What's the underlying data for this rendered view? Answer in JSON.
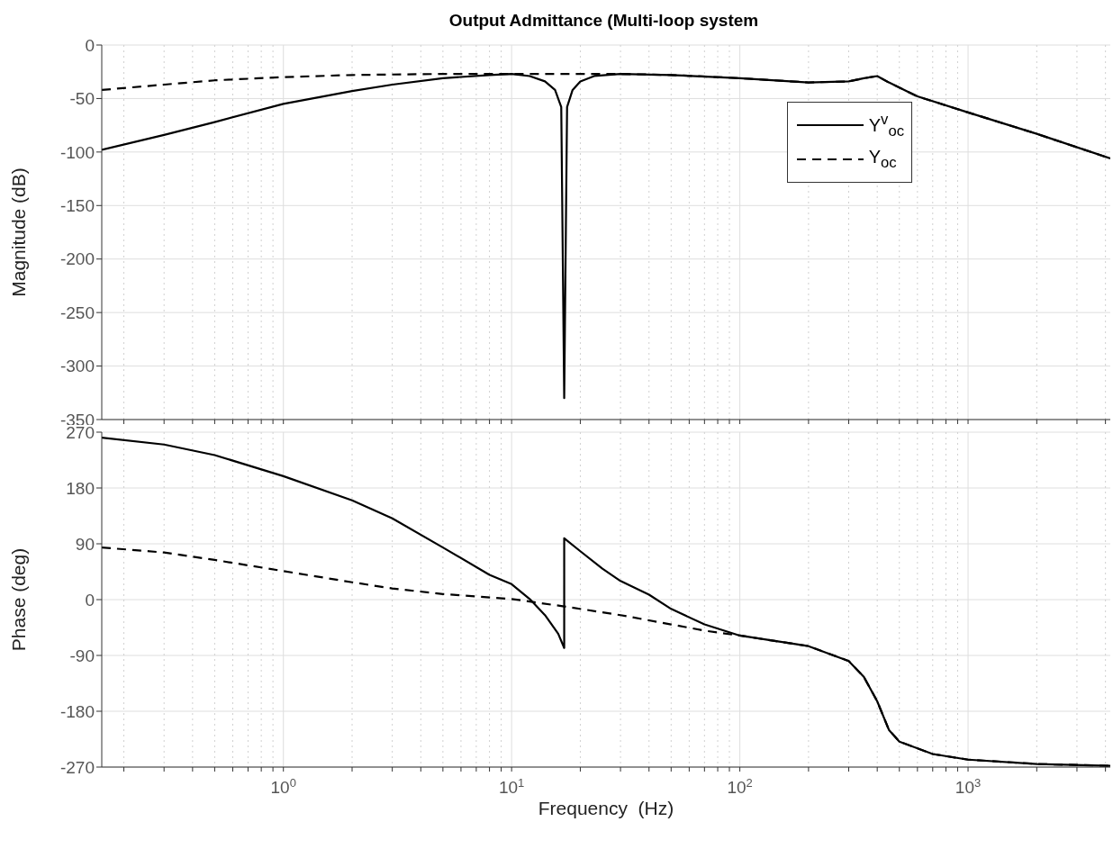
{
  "chart_data": [
    {
      "type": "line",
      "title": "Output Admittance (Multi-loop system",
      "ylabel": "Magnitude (dB)",
      "log": "x",
      "grid": true,
      "legend": "top right",
      "tick_labels": "y",
      "xlim": [
        0.16,
        4200
      ],
      "xticks": [
        {
          "value": 0.2,
          "label": null
        },
        {
          "value": 0.3,
          "label": null
        },
        {
          "value": 0.4,
          "label": null
        },
        {
          "value": 0.5,
          "label": null
        },
        {
          "value": 0.6,
          "label": null
        },
        {
          "value": 0.7,
          "label": null
        },
        {
          "value": 0.8,
          "label": null
        },
        {
          "value": 0.9,
          "label": null
        },
        {
          "value": 1,
          "label": null
        },
        {
          "value": 2,
          "label": null
        },
        {
          "value": 3,
          "label": null
        },
        {
          "value": 4,
          "label": null
        },
        {
          "value": 5,
          "label": null
        },
        {
          "value": 6,
          "label": null
        },
        {
          "value": 7,
          "label": null
        },
        {
          "value": 8,
          "label": null
        },
        {
          "value": 9,
          "label": null
        },
        {
          "value": 10,
          "label": null
        },
        {
          "value": 20,
          "label": null
        },
        {
          "value": 30,
          "label": null
        },
        {
          "value": 40,
          "label": null
        },
        {
          "value": 50,
          "label": null
        },
        {
          "value": 60,
          "label": null
        },
        {
          "value": 70,
          "label": null
        },
        {
          "value": 80,
          "label": null
        },
        {
          "value": 90,
          "label": null
        },
        {
          "value": 100,
          "label": null
        },
        {
          "value": 200,
          "label": null
        },
        {
          "value": 300,
          "label": null
        },
        {
          "value": 400,
          "label": null
        },
        {
          "value": 500,
          "label": null
        },
        {
          "value": 600,
          "label": null
        },
        {
          "value": 700,
          "label": null
        },
        {
          "value": 800,
          "label": null
        },
        {
          "value": 900,
          "label": null
        },
        {
          "value": 1000,
          "label": null
        },
        {
          "value": 2000,
          "label": null
        },
        {
          "value": 3000,
          "label": null
        },
        {
          "value": 4000,
          "label": null
        }
      ],
      "ylim": [
        -350,
        0
      ],
      "yticks": [
        0,
        -50,
        -100,
        -150,
        -200,
        -250,
        -300,
        -350
      ],
      "series": [
        {
          "name": "Y$^{v}$$_{oc}$",
          "color": "#000000",
          "line_style": "solid",
          "x": [
            0.16,
            0.3,
            0.5,
            1,
            2,
            3,
            5,
            8,
            10,
            12,
            14,
            15.5,
            16.5,
            17,
            17.5,
            18.5,
            20,
            23,
            30,
            50,
            100,
            200,
            300,
            350,
            400,
            450,
            600,
            1000,
            2000,
            4200
          ],
          "values": [
            -98,
            -84,
            -72,
            -55,
            -43,
            -37,
            -31,
            -28,
            -27,
            -29,
            -34,
            -42,
            -58,
            -330,
            -58,
            -42,
            -34,
            -29,
            -27,
            -28,
            -31,
            -35,
            -34,
            -31,
            -29,
            -35,
            -48,
            -63,
            -83,
            -106
          ]
        },
        {
          "name": "Y$_{oc}$",
          "color": "#000000",
          "line_style": "dashed",
          "x": [
            0.16,
            0.3,
            0.5,
            1,
            2,
            5,
            10,
            20,
            30,
            50,
            100,
            200,
            300,
            350,
            400,
            450,
            600,
            1000,
            2000,
            4200
          ],
          "values": [
            -42,
            -37,
            -33,
            -30,
            -28,
            -27,
            -27,
            -27,
            -27,
            -28,
            -31,
            -35,
            -34,
            -31,
            -29,
            -35,
            -48,
            -63,
            -83,
            -106
          ]
        }
      ]
    },
    {
      "type": "line",
      "xlabel": "Frequency  (Hz)",
      "ylabel": "Phase (deg)",
      "log": "x",
      "grid": true,
      "xlim": [
        0.16,
        4200
      ],
      "xticks": [
        {
          "value": 0.2,
          "label": null
        },
        {
          "value": 0.3,
          "label": null
        },
        {
          "value": 0.4,
          "label": null
        },
        {
          "value": 0.5,
          "label": null
        },
        {
          "value": 0.6,
          "label": null
        },
        {
          "value": 0.7,
          "label": null
        },
        {
          "value": 0.8,
          "label": null
        },
        {
          "value": 0.9,
          "label": null
        },
        {
          "value": 1,
          "label": "10$^{0}$"
        },
        {
          "value": 2,
          "label": null
        },
        {
          "value": 3,
          "label": null
        },
        {
          "value": 4,
          "label": null
        },
        {
          "value": 5,
          "label": null
        },
        {
          "value": 6,
          "label": null
        },
        {
          "value": 7,
          "label": null
        },
        {
          "value": 8,
          "label": null
        },
        {
          "value": 9,
          "label": null
        },
        {
          "value": 10,
          "label": "10$^{1}$"
        },
        {
          "value": 20,
          "label": null
        },
        {
          "value": 30,
          "label": null
        },
        {
          "value": 40,
          "label": null
        },
        {
          "value": 50,
          "label": null
        },
        {
          "value": 60,
          "label": null
        },
        {
          "value": 70,
          "label": null
        },
        {
          "value": 80,
          "label": null
        },
        {
          "value": 90,
          "label": null
        },
        {
          "value": 100,
          "label": "10$^{2}$"
        },
        {
          "value": 200,
          "label": null
        },
        {
          "value": 300,
          "label": null
        },
        {
          "value": 400,
          "label": null
        },
        {
          "value": 500,
          "label": null
        },
        {
          "value": 600,
          "label": null
        },
        {
          "value": 700,
          "label": null
        },
        {
          "value": 800,
          "label": null
        },
        {
          "value": 900,
          "label": null
        },
        {
          "value": 1000,
          "label": "10$^{3}$"
        },
        {
          "value": 2000,
          "label": null
        },
        {
          "value": 3000,
          "label": null
        },
        {
          "value": 4000,
          "label": null
        }
      ],
      "ylim": [
        -270,
        270
      ],
      "yticks": [
        270,
        180,
        90,
        0,
        -90,
        -180,
        -270
      ],
      "series": [
        {
          "color": "#000000",
          "line_style": "solid",
          "x": [
            0.16,
            0.3,
            0.5,
            1,
            2,
            3,
            5,
            8,
            10,
            12,
            14,
            16,
            17,
            17,
            20,
            25,
            30,
            40,
            50,
            70,
            100,
            200,
            300,
            350,
            400,
            450,
            500,
            700,
            1000,
            2000,
            4200
          ],
          "values": [
            261,
            250,
            233,
            199,
            160,
            131,
            84,
            40,
            25,
            1,
            -25,
            -55,
            -78,
            99,
            78,
            50,
            30,
            8,
            -15,
            -40,
            -58,
            -75,
            -99,
            -125,
            -164,
            -210,
            -229,
            -249,
            -258,
            -265,
            -268
          ]
        },
        {
          "color": "#000000",
          "line_style": "dashed",
          "x": [
            0.16,
            0.3,
            0.5,
            1,
            2,
            3,
            5,
            10,
            17,
            30,
            50,
            70,
            100,
            200,
            300,
            350,
            400,
            450,
            500,
            700,
            1000,
            2000,
            4200
          ],
          "values": [
            84,
            76,
            64,
            46,
            28,
            18,
            9,
            1,
            -11,
            -25,
            -40,
            -50,
            -58,
            -75,
            -99,
            -125,
            -164,
            -210,
            -229,
            -249,
            -258,
            -265,
            -268
          ]
        }
      ]
    }
  ]
}
